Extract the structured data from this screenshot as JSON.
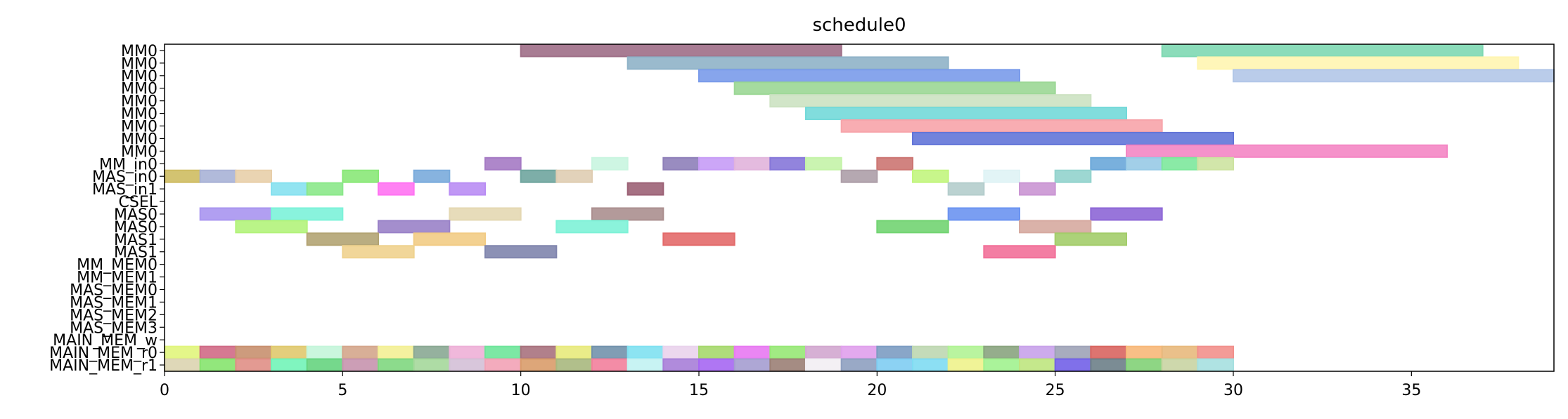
{
  "chart_data": {
    "type": "gantt",
    "title": "schedule0",
    "xlabel": "",
    "ylabel": "",
    "xlim": [
      0,
      39
    ],
    "xticks": [
      0,
      5,
      10,
      15,
      20,
      25,
      30,
      35
    ],
    "grid": false,
    "rows": [
      "MM0",
      "MM0",
      "MM0",
      "MM0",
      "MM0",
      "MM0",
      "MM0",
      "MM0",
      "MM0",
      "MM_in0",
      "MAS_in0",
      "MAS_in1",
      "CSEL",
      "MAS0",
      "MAS0",
      "MAS1",
      "MAS1",
      "MM_MEM0",
      "MM_MEM1",
      "MAS_MEM0",
      "MAS_MEM1",
      "MAS_MEM2",
      "MAS_MEM3",
      "MAIN_MEM_w",
      "MAIN_MEM_r0",
      "MAIN_MEM_r1"
    ],
    "tasks": [
      {
        "row": 0,
        "start": 10,
        "end": 19,
        "color": "#9e6e87"
      },
      {
        "row": 0,
        "start": 28,
        "end": 37,
        "color": "#7ed8b2"
      },
      {
        "row": 1,
        "start": 13,
        "end": 22,
        "color": "#8fb3c8"
      },
      {
        "row": 1,
        "start": 29,
        "end": 38,
        "color": "#fff5b1"
      },
      {
        "row": 2,
        "start": 15,
        "end": 24,
        "color": "#7a9bea"
      },
      {
        "row": 2,
        "start": 30,
        "end": 39,
        "color": "#b2c7e8"
      },
      {
        "row": 3,
        "start": 16,
        "end": 25,
        "color": "#9bd795"
      },
      {
        "row": 4,
        "start": 17,
        "end": 26,
        "color": "#cce2c2"
      },
      {
        "row": 5,
        "start": 18,
        "end": 27,
        "color": "#73d9d9"
      },
      {
        "row": 6,
        "start": 19,
        "end": 28,
        "color": "#f7a4aa"
      },
      {
        "row": 7,
        "start": 21,
        "end": 30,
        "color": "#6375d8"
      },
      {
        "row": 8,
        "start": 27,
        "end": 36,
        "color": "#f486c4"
      },
      {
        "row": 9,
        "start": 9,
        "end": 10,
        "color": "#a57ac4"
      },
      {
        "row": 9,
        "start": 12,
        "end": 13,
        "color": "#c9f5e0"
      },
      {
        "row": 9,
        "start": 14,
        "end": 15,
        "color": "#8e7fb9"
      },
      {
        "row": 9,
        "start": 15,
        "end": 16,
        "color": "#c79cf6"
      },
      {
        "row": 9,
        "start": 16,
        "end": 17,
        "color": "#e1b4dc"
      },
      {
        "row": 9,
        "start": 17,
        "end": 18,
        "color": "#8677d9"
      },
      {
        "row": 9,
        "start": 18,
        "end": 19,
        "color": "#c4f3a8"
      },
      {
        "row": 9,
        "start": 20,
        "end": 21,
        "color": "#cc7572"
      },
      {
        "row": 9,
        "start": 26,
        "end": 27,
        "color": "#6aa7d9"
      },
      {
        "row": 9,
        "start": 27,
        "end": 28,
        "color": "#98cae6"
      },
      {
        "row": 9,
        "start": 28,
        "end": 29,
        "color": "#7de89c"
      },
      {
        "row": 9,
        "start": 29,
        "end": 30,
        "color": "#cde3a1"
      },
      {
        "row": 10,
        "start": 0,
        "end": 1,
        "color": "#cebc62"
      },
      {
        "row": 10,
        "start": 1,
        "end": 2,
        "color": "#a9b2d6"
      },
      {
        "row": 10,
        "start": 2,
        "end": 3,
        "color": "#e8cfaa"
      },
      {
        "row": 10,
        "start": 5,
        "end": 6,
        "color": "#8ae878"
      },
      {
        "row": 10,
        "start": 7,
        "end": 8,
        "color": "#7aabdc"
      },
      {
        "row": 10,
        "start": 10,
        "end": 11,
        "color": "#6fa59e"
      },
      {
        "row": 10,
        "start": 11,
        "end": 12,
        "color": "#dfcdb2"
      },
      {
        "row": 10,
        "start": 19,
        "end": 20,
        "color": "#ad9ea8"
      },
      {
        "row": 10,
        "start": 21,
        "end": 22,
        "color": "#c2f57e"
      },
      {
        "row": 10,
        "start": 23,
        "end": 24,
        "color": "#dff3f5"
      },
      {
        "row": 10,
        "start": 25,
        "end": 26,
        "color": "#92d3cd"
      },
      {
        "row": 11,
        "start": 3,
        "end": 4,
        "color": "#86e1ef"
      },
      {
        "row": 11,
        "start": 4,
        "end": 5,
        "color": "#8be88a"
      },
      {
        "row": 11,
        "start": 6,
        "end": 7,
        "color": "#ff73f2"
      },
      {
        "row": 11,
        "start": 8,
        "end": 9,
        "color": "#b98df4"
      },
      {
        "row": 11,
        "start": 13,
        "end": 14,
        "color": "#9c6276"
      },
      {
        "row": 11,
        "start": 22,
        "end": 23,
        "color": "#b4cdcc"
      },
      {
        "row": 11,
        "start": 24,
        "end": 25,
        "color": "#ca95d3"
      },
      {
        "row": 13,
        "start": 1,
        "end": 3,
        "color": "#a995ef"
      },
      {
        "row": 13,
        "start": 3,
        "end": 5,
        "color": "#7cf2d9"
      },
      {
        "row": 13,
        "start": 8,
        "end": 10,
        "color": "#e4d8b2"
      },
      {
        "row": 13,
        "start": 12,
        "end": 14,
        "color": "#ab8f8f"
      },
      {
        "row": 13,
        "start": 22,
        "end": 24,
        "color": "#6b93f1"
      },
      {
        "row": 13,
        "start": 26,
        "end": 28,
        "color": "#8d66d6"
      },
      {
        "row": 14,
        "start": 2,
        "end": 4,
        "color": "#b3f37b"
      },
      {
        "row": 14,
        "start": 6,
        "end": 8,
        "color": "#9a82c8"
      },
      {
        "row": 14,
        "start": 11,
        "end": 13,
        "color": "#7ef2d7"
      },
      {
        "row": 14,
        "start": 20,
        "end": 22,
        "color": "#72d472"
      },
      {
        "row": 14,
        "start": 24,
        "end": 26,
        "color": "#d6aaa0"
      },
      {
        "row": 15,
        "start": 4,
        "end": 6,
        "color": "#b3a473"
      },
      {
        "row": 15,
        "start": 7,
        "end": 9,
        "color": "#f2cc85"
      },
      {
        "row": 15,
        "start": 14,
        "end": 16,
        "color": "#e36a6a"
      },
      {
        "row": 15,
        "start": 25,
        "end": 27,
        "color": "#a3cd6a"
      },
      {
        "row": 16,
        "start": 5,
        "end": 7,
        "color": "#efd28e"
      },
      {
        "row": 16,
        "start": 9,
        "end": 11,
        "color": "#8085ad"
      },
      {
        "row": 16,
        "start": 23,
        "end": 25,
        "color": "#f27099"
      },
      {
        "row": 24,
        "start": 0,
        "end": 1,
        "color": "#e1f57c"
      },
      {
        "row": 24,
        "start": 1,
        "end": 2,
        "color": "#d06a86"
      },
      {
        "row": 24,
        "start": 2,
        "end": 3,
        "color": "#c8906f"
      },
      {
        "row": 24,
        "start": 3,
        "end": 4,
        "color": "#e0c96e"
      },
      {
        "row": 24,
        "start": 4,
        "end": 5,
        "color": "#c4f5da"
      },
      {
        "row": 24,
        "start": 5,
        "end": 6,
        "color": "#d4a68c"
      },
      {
        "row": 24,
        "start": 6,
        "end": 7,
        "color": "#f3ef95"
      },
      {
        "row": 24,
        "start": 7,
        "end": 8,
        "color": "#8aa893"
      },
      {
        "row": 24,
        "start": 8,
        "end": 9,
        "color": "#eeb0d7"
      },
      {
        "row": 24,
        "start": 9,
        "end": 10,
        "color": "#6ee59a"
      },
      {
        "row": 24,
        "start": 10,
        "end": 11,
        "color": "#a8727e"
      },
      {
        "row": 24,
        "start": 11,
        "end": 12,
        "color": "#e8ea7c"
      },
      {
        "row": 24,
        "start": 12,
        "end": 13,
        "color": "#7292ac"
      },
      {
        "row": 24,
        "start": 13,
        "end": 14,
        "color": "#7fe1f1"
      },
      {
        "row": 24,
        "start": 14,
        "end": 15,
        "color": "#ead3ec"
      },
      {
        "row": 24,
        "start": 15,
        "end": 16,
        "color": "#a6d86d"
      },
      {
        "row": 24,
        "start": 16,
        "end": 17,
        "color": "#e879f2"
      },
      {
        "row": 24,
        "start": 17,
        "end": 18,
        "color": "#97e876"
      },
      {
        "row": 24,
        "start": 18,
        "end": 19,
        "color": "#d2a7cf"
      },
      {
        "row": 24,
        "start": 19,
        "end": 20,
        "color": "#e0a0ec"
      },
      {
        "row": 24,
        "start": 20,
        "end": 21,
        "color": "#7c9cc2"
      },
      {
        "row": 24,
        "start": 21,
        "end": 22,
        "color": "#bed7b1"
      },
      {
        "row": 24,
        "start": 22,
        "end": 23,
        "color": "#b1f395"
      },
      {
        "row": 24,
        "start": 23,
        "end": 24,
        "color": "#8aa47f"
      },
      {
        "row": 24,
        "start": 24,
        "end": 25,
        "color": "#c8a2ea"
      },
      {
        "row": 24,
        "start": 25,
        "end": 26,
        "color": "#9fa3b7"
      },
      {
        "row": 24,
        "start": 26,
        "end": 27,
        "color": "#d96560"
      },
      {
        "row": 24,
        "start": 27,
        "end": 28,
        "color": "#f7b879"
      },
      {
        "row": 24,
        "start": 28,
        "end": 29,
        "color": "#e8b97d"
      },
      {
        "row": 24,
        "start": 29,
        "end": 30,
        "color": "#f2908c"
      },
      {
        "row": 25,
        "start": 0,
        "end": 1,
        "color": "#dcd4b0"
      },
      {
        "row": 25,
        "start": 1,
        "end": 2,
        "color": "#86e46e"
      },
      {
        "row": 25,
        "start": 2,
        "end": 3,
        "color": "#e08f86"
      },
      {
        "row": 25,
        "start": 3,
        "end": 4,
        "color": "#72f4b8"
      },
      {
        "row": 25,
        "start": 4,
        "end": 5,
        "color": "#66d480"
      },
      {
        "row": 25,
        "start": 5,
        "end": 6,
        "color": "#c694ae"
      },
      {
        "row": 25,
        "start": 6,
        "end": 7,
        "color": "#7fd77f"
      },
      {
        "row": 25,
        "start": 7,
        "end": 8,
        "color": "#a5d89b"
      },
      {
        "row": 25,
        "start": 8,
        "end": 9,
        "color": "#d4c0d7"
      },
      {
        "row": 25,
        "start": 9,
        "end": 10,
        "color": "#f2a2b6"
      },
      {
        "row": 25,
        "start": 10,
        "end": 11,
        "color": "#d99c6a"
      },
      {
        "row": 25,
        "start": 11,
        "end": 12,
        "color": "#a9b87e"
      },
      {
        "row": 25,
        "start": 12,
        "end": 13,
        "color": "#f2809c"
      },
      {
        "row": 25,
        "start": 13,
        "end": 14,
        "color": "#c2f2f2"
      },
      {
        "row": 25,
        "start": 14,
        "end": 15,
        "color": "#a77ed8"
      },
      {
        "row": 25,
        "start": 15,
        "end": 16,
        "color": "#a667f2"
      },
      {
        "row": 25,
        "start": 16,
        "end": 17,
        "color": "#a59dd0"
      },
      {
        "row": 25,
        "start": 17,
        "end": 18,
        "color": "#9b7f75"
      },
      {
        "row": 25,
        "start": 18,
        "end": 19,
        "color": "#f2eef3"
      },
      {
        "row": 25,
        "start": 19,
        "end": 20,
        "color": "#8ea0c0"
      },
      {
        "row": 25,
        "start": 20,
        "end": 21,
        "color": "#80cdf2"
      },
      {
        "row": 25,
        "start": 21,
        "end": 22,
        "color": "#7fdbf2"
      },
      {
        "row": 25,
        "start": 22,
        "end": 23,
        "color": "#eef28c"
      },
      {
        "row": 25,
        "start": 23,
        "end": 24,
        "color": "#a1f28f"
      },
      {
        "row": 25,
        "start": 24,
        "end": 25,
        "color": "#bfe57f"
      },
      {
        "row": 25,
        "start": 25,
        "end": 26,
        "color": "#7260e8"
      },
      {
        "row": 25,
        "start": 26,
        "end": 27,
        "color": "#6d8088"
      },
      {
        "row": 25,
        "start": 27,
        "end": 28,
        "color": "#82d277"
      },
      {
        "row": 25,
        "start": 28,
        "end": 29,
        "color": "#c9d4a3"
      },
      {
        "row": 25,
        "start": 29,
        "end": 30,
        "color": "#a6e0e0"
      }
    ]
  }
}
